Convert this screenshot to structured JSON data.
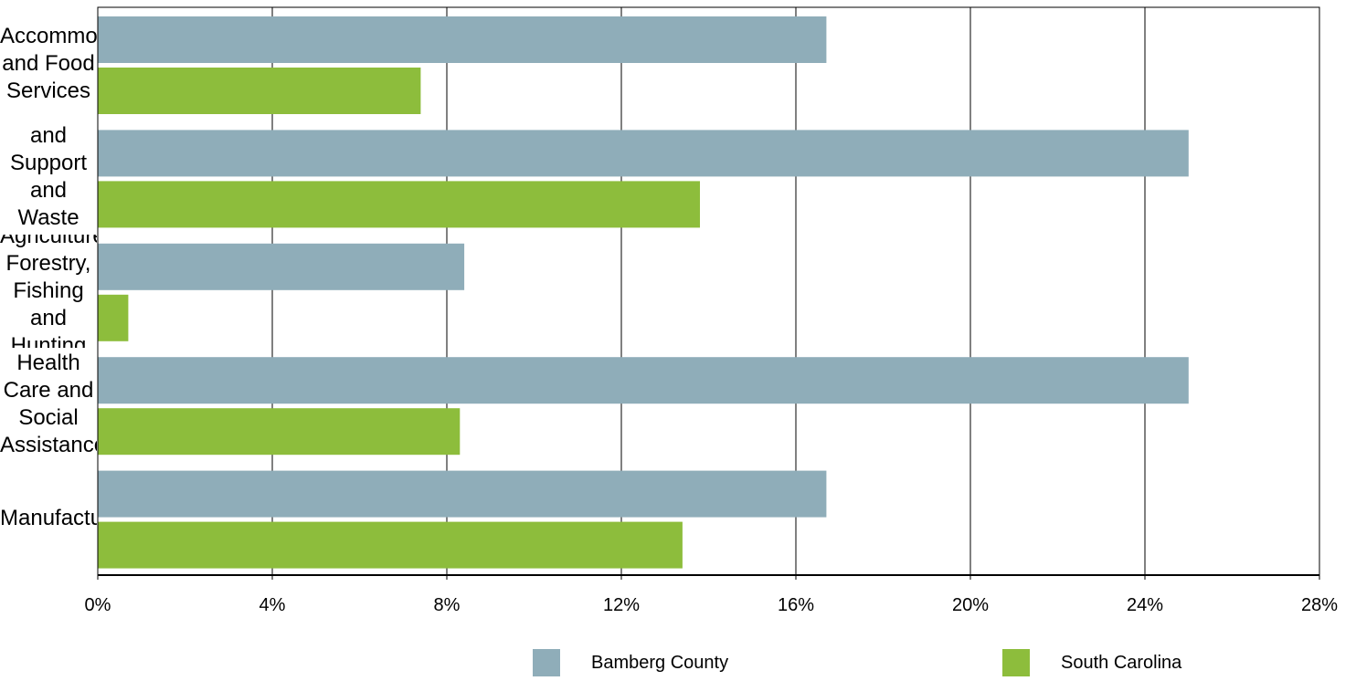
{
  "chart_data": {
    "type": "bar",
    "orientation": "horizontal",
    "categories": [
      "Accommodation and Food Services",
      "Administrative and Support and Waste Management",
      "Agriculture, Forestry, Fishing and Hunting",
      "Health Care and Social Assistance",
      "Manufacturing"
    ],
    "series": [
      {
        "name": "Bamberg County",
        "color": "#8fadb9",
        "values": [
          16.7,
          25.0,
          8.4,
          25.0,
          16.7
        ]
      },
      {
        "name": "South Carolina",
        "color": "#8dbd3c",
        "values": [
          7.4,
          13.8,
          0.7,
          8.3,
          13.4
        ]
      }
    ],
    "xlim": [
      0,
      28
    ],
    "xticks": [
      "0%",
      "4%",
      "8%",
      "12%",
      "16%",
      "20%",
      "24%",
      "28%"
    ],
    "grid": true,
    "legend_position": "bottom"
  }
}
